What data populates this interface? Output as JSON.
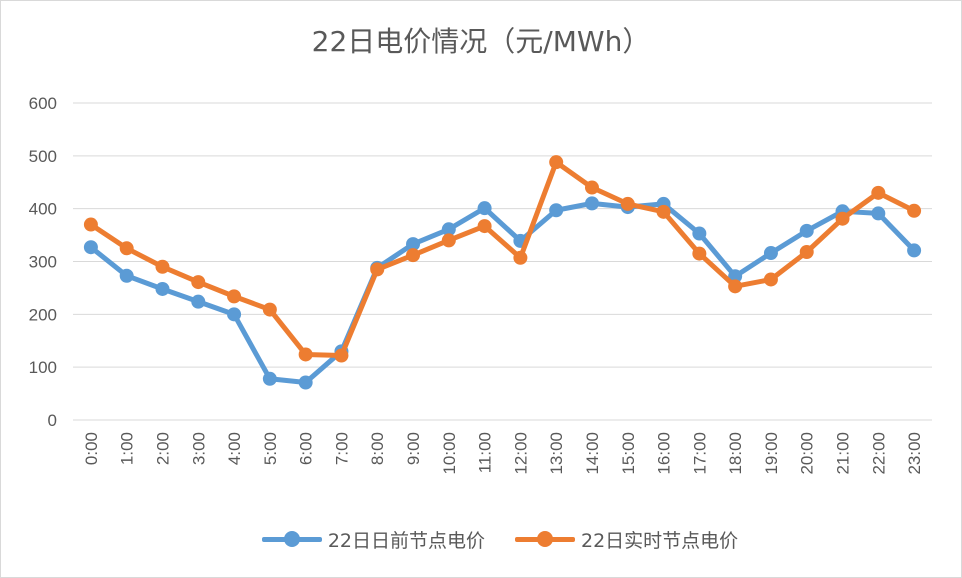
{
  "chart_data": {
    "type": "line",
    "title": "22日电价情况（元/MWh）",
    "xlabel": "",
    "ylabel": "",
    "ylim": [
      0,
      600
    ],
    "yticks": [
      0,
      100,
      200,
      300,
      400,
      500,
      600
    ],
    "grid": true,
    "legend": "bottom",
    "categories": [
      "0:00",
      "1:00",
      "2:00",
      "3:00",
      "4:00",
      "5:00",
      "6:00",
      "7:00",
      "8:00",
      "9:00",
      "10:00",
      "11:00",
      "12:00",
      "13:00",
      "14:00",
      "15:00",
      "16:00",
      "17:00",
      "18:00",
      "19:00",
      "20:00",
      "21:00",
      "22:00",
      "23:00"
    ],
    "series": [
      {
        "name": "22日日前节点电价",
        "color": "#5B9BD5",
        "values": [
          327,
          273,
          248,
          224,
          200,
          78,
          71,
          130,
          288,
          333,
          361,
          401,
          339,
          397,
          410,
          403,
          409,
          353,
          272,
          316,
          358,
          395,
          391,
          321
        ]
      },
      {
        "name": "22日实时节点电价",
        "color": "#ED7D31",
        "values": [
          370,
          325,
          290,
          261,
          234,
          209,
          124,
          122,
          285,
          312,
          340,
          367,
          307,
          488,
          440,
          409,
          394,
          315,
          253,
          266,
          318,
          381,
          430,
          396
        ]
      }
    ]
  }
}
